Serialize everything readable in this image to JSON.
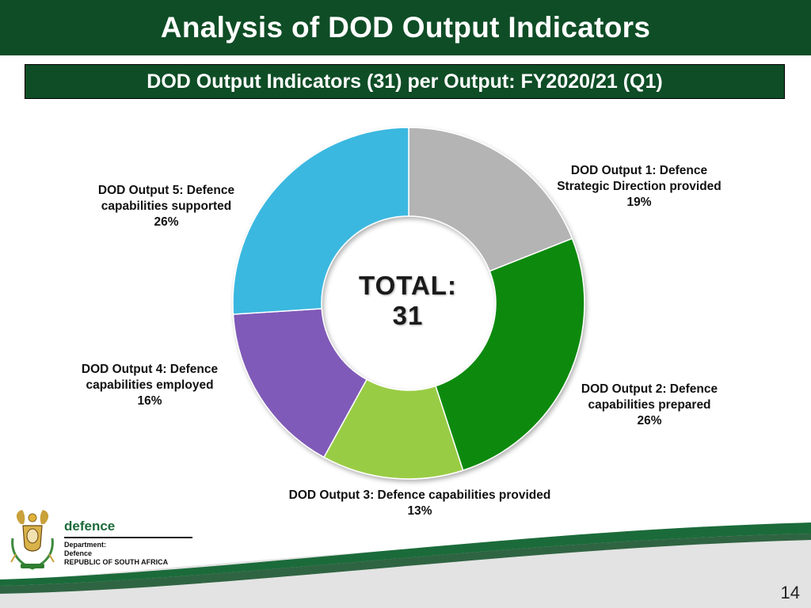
{
  "header": {
    "title": "Analysis of DOD Output Indicators",
    "subtitle": "DOD Output Indicators (31) per Output: FY2020/21 (Q1)"
  },
  "center": {
    "line1": "TOTAL:",
    "line2": "31"
  },
  "chart_data": {
    "type": "pie",
    "style": "donut",
    "total": 31,
    "slices": [
      {
        "name_line1": "DOD Output 1: Defence",
        "name_line2": "Strategic Direction provided",
        "pct_label": "19%",
        "value": 19,
        "color": "#b4b4b4"
      },
      {
        "name_line1": "DOD Output 2: Defence",
        "name_line2": "capabilities prepared",
        "pct_label": "26%",
        "value": 26,
        "color": "#118a11"
      },
      {
        "name_line1": "DOD Output 3: Defence capabilities provided",
        "name_line2": "",
        "pct_label": "13%",
        "value": 13,
        "color": "#99cc44"
      },
      {
        "name_line1": "DOD Output 4: Defence",
        "name_line2": "capabilities employed",
        "pct_label": "16%",
        "value": 16,
        "color": "#7f5ab8"
      },
      {
        "name_line1": "DOD Output 5: Defence",
        "name_line2": "capabilities supported",
        "pct_label": "26%",
        "value": 26,
        "color": "#3bb8e0"
      }
    ]
  },
  "footer": {
    "dept_word": "defence",
    "dept_line1": "Department:",
    "dept_line2": "Defence",
    "dept_line3": "REPUBLIC OF SOUTH AFRICA",
    "page_number": "14",
    "colors": {
      "brand_green": "#0f4d26",
      "swoosh_green": "#1b6b3a",
      "band_grey": "#e3e3e3"
    }
  }
}
